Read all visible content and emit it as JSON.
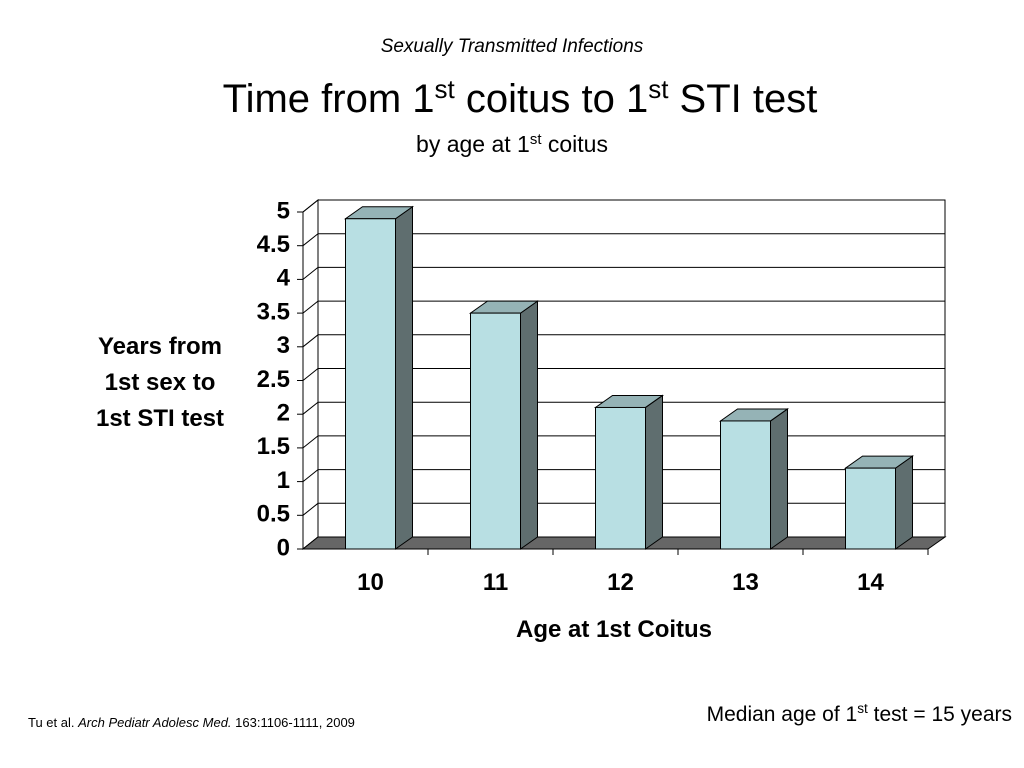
{
  "header": "Sexually Transmitted Infections",
  "chart_data": {
    "type": "bar3d",
    "title": [
      "Time from 1",
      "st",
      " coitus to 1",
      "st",
      " STI test"
    ],
    "subtitle": [
      "by age at 1",
      "st",
      " coitus"
    ],
    "ylabel": [
      "Years from",
      "1st sex to",
      "1st STI test"
    ],
    "xlabel": "Age at 1st Coitus",
    "categories": [
      "10",
      "11",
      "12",
      "13",
      "14"
    ],
    "values": [
      4.9,
      3.5,
      2.1,
      1.9,
      1.2
    ],
    "color": "#b8dfe3",
    "ylim": [
      0,
      5
    ],
    "yticks": [
      0,
      0.5,
      1,
      1.5,
      2,
      2.5,
      3,
      3.5,
      4,
      4.5,
      5
    ],
    "grid": true
  },
  "note": [
    "Median age of 1",
    "st",
    " test = 15 years"
  ],
  "citation": [
    "Tu et al. ",
    "Arch Pediatr Adolesc Med.",
    " 163:1106-1111, 2009"
  ]
}
